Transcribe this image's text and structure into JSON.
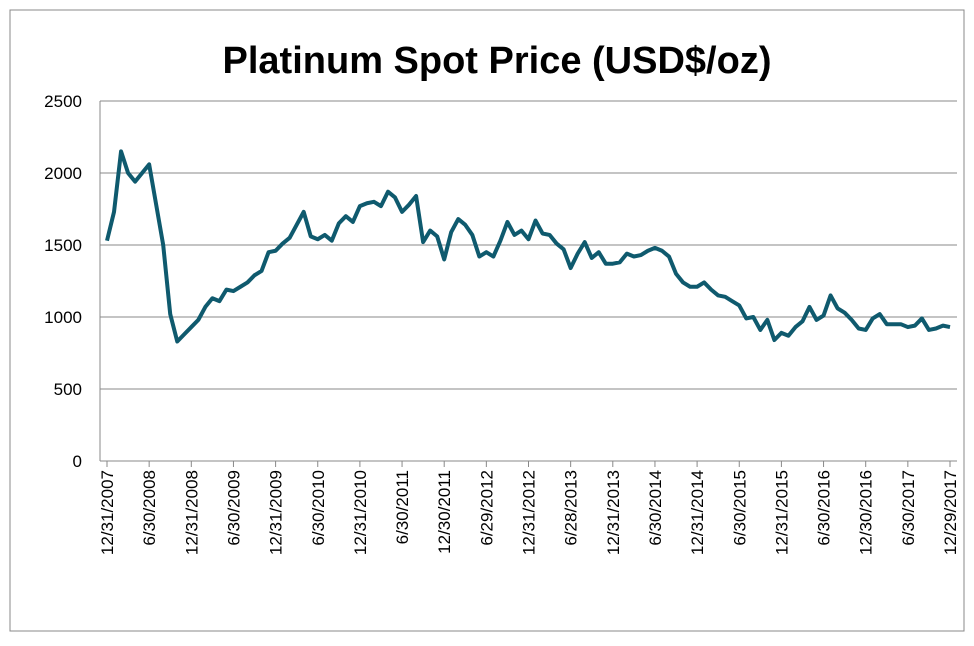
{
  "chart_data": {
    "type": "line",
    "title": "Platinum Spot Price (USD$/oz)",
    "categories": [
      "12/31/2007",
      null,
      null,
      null,
      null,
      null,
      "6/30/2008",
      null,
      null,
      null,
      null,
      null,
      "12/31/2008",
      null,
      null,
      null,
      null,
      null,
      "6/30/2009",
      null,
      null,
      null,
      null,
      null,
      "12/31/2009",
      null,
      null,
      null,
      null,
      null,
      "6/30/2010",
      null,
      null,
      null,
      null,
      null,
      "12/31/2010",
      null,
      null,
      null,
      null,
      null,
      "6/30/2011",
      null,
      null,
      null,
      null,
      null,
      "12/30/2011",
      null,
      null,
      null,
      null,
      null,
      "6/29/2012",
      null,
      null,
      null,
      null,
      null,
      "12/31/2012",
      null,
      null,
      null,
      null,
      null,
      "6/28/2013",
      null,
      null,
      null,
      null,
      null,
      "12/31/2013",
      null,
      null,
      null,
      null,
      null,
      "6/30/2014",
      null,
      null,
      null,
      null,
      null,
      "12/31/2014",
      null,
      null,
      null,
      null,
      null,
      "6/30/2015",
      null,
      null,
      null,
      null,
      null,
      "12/31/2015",
      null,
      null,
      null,
      null,
      null,
      "6/30/2016",
      null,
      null,
      null,
      null,
      null,
      "12/30/2016",
      null,
      null,
      null,
      null,
      null,
      "6/30/2017",
      null,
      null,
      null,
      null,
      null,
      "12/29/2017"
    ],
    "series": [
      {
        "name": "Platinum",
        "color": "#0f5a6e",
        "values": [
          1530,
          1730,
          2150,
          2000,
          1940,
          2000,
          2060,
          1780,
          1500,
          1020,
          830,
          880,
          930,
          980,
          1070,
          1130,
          1110,
          1190,
          1180,
          1210,
          1240,
          1290,
          1320,
          1450,
          1460,
          1510,
          1550,
          1640,
          1730,
          1560,
          1540,
          1570,
          1530,
          1650,
          1700,
          1660,
          1770,
          1790,
          1800,
          1770,
          1870,
          1830,
          1730,
          1780,
          1840,
          1520,
          1600,
          1560,
          1400,
          1590,
          1680,
          1640,
          1570,
          1420,
          1450,
          1420,
          1530,
          1660,
          1570,
          1600,
          1540,
          1670,
          1580,
          1570,
          1510,
          1470,
          1340,
          1440,
          1520,
          1410,
          1450,
          1370,
          1370,
          1380,
          1440,
          1420,
          1430,
          1460,
          1480,
          1460,
          1420,
          1300,
          1240,
          1210,
          1210,
          1240,
          1190,
          1150,
          1140,
          1110,
          1080,
          990,
          1000,
          910,
          980,
          840,
          890,
          870,
          930,
          970,
          1070,
          980,
          1010,
          1150,
          1060,
          1030,
          980,
          920,
          910,
          990,
          1020,
          950,
          950,
          950,
          930,
          940,
          990,
          910,
          920,
          940,
          930
        ]
      }
    ],
    "ylim": [
      0,
      2500
    ],
    "yticks": [
      0,
      500,
      1000,
      1500,
      2000,
      2500
    ],
    "grid": true
  }
}
